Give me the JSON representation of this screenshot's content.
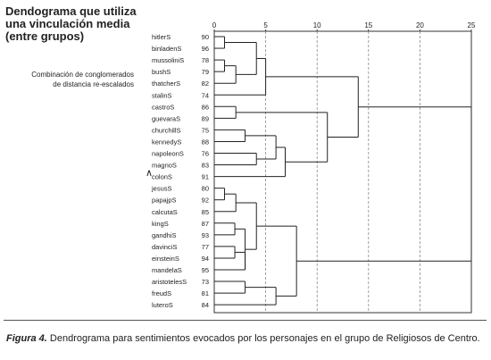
{
  "title_lines": [
    "Dendograma que utiliza",
    "una vinculación media",
    "(entre grupos)"
  ],
  "subtitle_lines": [
    "Combinación de conglomerados",
    "de distancia re-escalados"
  ],
  "marker_glyph": "∧",
  "caption": {
    "label": "Figura 4.",
    "text": " Dendrograma para sentimientos evocados por los personajes en el grupo de Religiosos de Centro."
  },
  "chart_data": {
    "type": "dendrogram",
    "xlim": [
      0,
      25
    ],
    "xticks": [
      0,
      5,
      10,
      15,
      20,
      25
    ],
    "grid": "dashed-vertical",
    "leaves": [
      {
        "label": "hitlerS",
        "case": "90"
      },
      {
        "label": "binladenS",
        "case": "96"
      },
      {
        "label": "mussoliniS",
        "case": "78"
      },
      {
        "label": "bushS",
        "case": "79"
      },
      {
        "label": "thatcherS",
        "case": "82"
      },
      {
        "label": "stalinS",
        "case": "74"
      },
      {
        "label": "castroS",
        "case": "86"
      },
      {
        "label": "guevaraS",
        "case": "89"
      },
      {
        "label": "churchillS",
        "case": "75"
      },
      {
        "label": "kennedyS",
        "case": "88"
      },
      {
        "label": "napoleonS",
        "case": "76"
      },
      {
        "label": "magnoS",
        "case": "83"
      },
      {
        "label": "colonS",
        "case": "91"
      },
      {
        "label": "jesusS",
        "case": "80"
      },
      {
        "label": "papajpS",
        "case": "92"
      },
      {
        "label": "calcutaS",
        "case": "85"
      },
      {
        "label": "kingS",
        "case": "87"
      },
      {
        "label": "gandhiS",
        "case": "93"
      },
      {
        "label": "davinciS",
        "case": "77"
      },
      {
        "label": "einsteinS",
        "case": "94"
      },
      {
        "label": "mandelaS",
        "case": "95"
      },
      {
        "label": "aristotelesS",
        "case": "73"
      },
      {
        "label": "freudS",
        "case": "81"
      },
      {
        "label": "luteroS",
        "case": "84"
      }
    ],
    "merges": [
      {
        "id": "m1",
        "children": [
          "L2",
          "L3"
        ],
        "distance": 1.0
      },
      {
        "id": "m2",
        "children": [
          "L13",
          "L14"
        ],
        "distance": 1.0
      },
      {
        "id": "m3",
        "children": [
          "m1",
          "L4"
        ],
        "distance": 2.1
      },
      {
        "id": "m4",
        "children": [
          "L0",
          "L1"
        ],
        "distance": 1.0
      },
      {
        "id": "m5",
        "children": [
          "L16",
          "L17"
        ],
        "distance": 2.0
      },
      {
        "id": "m6",
        "children": [
          "m2",
          "L15"
        ],
        "distance": 2.1
      },
      {
        "id": "m7",
        "children": [
          "L18",
          "L19"
        ],
        "distance": 2.0
      },
      {
        "id": "m8",
        "children": [
          "L6",
          "L7"
        ],
        "distance": 2.1
      },
      {
        "id": "m9",
        "children": [
          "m5",
          "L20"
        ],
        "distance": 3.0
      },
      {
        "id": "m10",
        "children": [
          "m7",
          "L20"
        ],
        "distance": 3.0
      },
      {
        "id": "m11",
        "children": [
          "m4",
          "m3"
        ],
        "distance": 4.1
      },
      {
        "id": "m12",
        "children": [
          "L8",
          "L9"
        ],
        "distance": 3.0
      },
      {
        "id": "m13",
        "children": [
          "L10",
          "L11"
        ],
        "distance": 4.1
      },
      {
        "id": "m14",
        "children": [
          "L21",
          "L22"
        ],
        "distance": 3.0
      },
      {
        "id": "m15",
        "children": [
          "m6",
          "m9"
        ],
        "distance": 4.1
      },
      {
        "id": "m16",
        "children": [
          "m11",
          "L5"
        ],
        "distance": 5.0
      },
      {
        "id": "m17",
        "children": [
          "m12",
          "m13"
        ],
        "distance": 6.0
      },
      {
        "id": "m18",
        "children": [
          "m14",
          "L23"
        ],
        "distance": 6.0
      },
      {
        "id": "m19",
        "children": [
          "m17",
          "L12"
        ],
        "distance": 6.9
      },
      {
        "id": "m20",
        "children": [
          "m15",
          "m18"
        ],
        "distance": 8.0
      },
      {
        "id": "m21",
        "children": [
          "m8",
          "m19"
        ],
        "distance": 11.0
      },
      {
        "id": "m22",
        "children": [
          "m16",
          "m21"
        ],
        "distance": 14.0
      },
      {
        "id": "m23",
        "children": [
          "m22",
          "m20"
        ],
        "distance": 25.0
      }
    ]
  }
}
